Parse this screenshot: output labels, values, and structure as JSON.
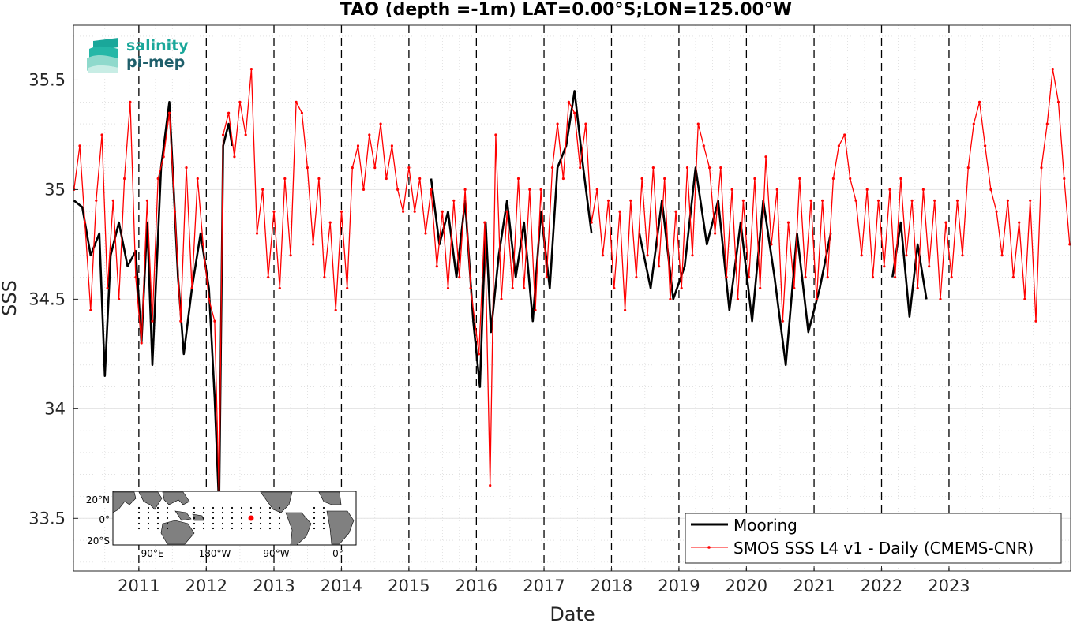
{
  "chart_data": {
    "type": "line",
    "title": "TAO (depth =-1m) LAT=0.00°S;LON=125.00°W",
    "xlabel": "Date",
    "ylabel": "SSS",
    "xlim": [
      "2010-01-12",
      "2024-10-20"
    ],
    "ylim": [
      33.26,
      35.75
    ],
    "x_tick_labels": [
      "2011",
      "2012",
      "2013",
      "2014",
      "2015",
      "2016",
      "2017",
      "2018",
      "2019",
      "2020",
      "2021",
      "2022",
      "2023"
    ],
    "x_tick_dates": [
      "2011-01-01",
      "2012-01-01",
      "2013-01-01",
      "2014-01-01",
      "2015-01-01",
      "2016-01-01",
      "2017-01-01",
      "2018-01-01",
      "2019-01-01",
      "2020-01-01",
      "2021-01-01",
      "2022-01-01",
      "2023-01-01"
    ],
    "y_ticks": [
      33.5,
      34,
      34.5,
      35,
      35.5
    ],
    "y_tick_labels": [
      "33.5",
      "34",
      "34.5",
      "35",
      "35.5"
    ],
    "grid": true,
    "legend_position": "bottom-right",
    "series": [
      {
        "name": "Mooring",
        "color": "#000000",
        "points": [
          [
            "2010-01-15",
            34.95
          ],
          [
            "2010-03-01",
            34.92
          ],
          [
            "2010-04-15",
            34.7
          ],
          [
            "2010-06-01",
            34.8
          ],
          [
            "2010-07-01",
            34.15
          ],
          [
            "2010-08-01",
            34.7
          ],
          [
            "2010-09-15",
            34.85
          ],
          [
            "2010-11-01",
            34.65
          ],
          [
            "2010-12-15",
            34.72
          ],
          [
            "2011-01-15",
            34.3
          ],
          [
            "2011-02-15",
            34.85
          ],
          [
            "2011-03-15",
            34.2
          ],
          [
            "2011-05-01",
            35.1
          ],
          [
            "2011-06-15",
            35.4
          ],
          [
            "2011-08-01",
            34.6
          ],
          [
            "2011-09-01",
            34.25
          ],
          [
            "2011-10-15",
            34.55
          ],
          [
            "2011-12-01",
            34.8
          ],
          [
            "2012-01-15",
            34.55
          ],
          [
            "2012-02-15",
            34.05
          ],
          [
            "2012-03-10",
            33.55
          ],
          [
            "2012-04-01",
            35.2
          ],
          [
            "2012-05-01",
            35.3
          ],
          [
            "2012-05-20",
            35.2
          ],
          [
            "2015-05-01",
            35.05
          ],
          [
            "2015-06-15",
            34.75
          ],
          [
            "2015-08-01",
            34.9
          ],
          [
            "2015-09-15",
            34.6
          ],
          [
            "2015-11-01",
            34.95
          ],
          [
            "2015-12-15",
            34.4
          ],
          [
            "2016-01-20",
            34.1
          ],
          [
            "2016-02-20",
            34.85
          ],
          [
            "2016-03-20",
            34.35
          ],
          [
            "2016-05-01",
            34.7
          ],
          [
            "2016-06-15",
            34.95
          ],
          [
            "2016-08-01",
            34.6
          ],
          [
            "2016-09-15",
            34.85
          ],
          [
            "2016-11-01",
            34.4
          ],
          [
            "2016-12-15",
            34.9
          ],
          [
            "2017-02-01",
            34.55
          ],
          [
            "2017-03-15",
            35.1
          ],
          [
            "2017-05-01",
            35.2
          ],
          [
            "2017-06-15",
            35.45
          ],
          [
            "2017-08-01",
            35.1
          ],
          [
            "2017-09-15",
            34.8
          ],
          [
            "2018-06-01",
            34.8
          ],
          [
            "2018-08-01",
            34.55
          ],
          [
            "2018-10-01",
            34.95
          ],
          [
            "2018-12-01",
            34.5
          ],
          [
            "2019-02-01",
            34.65
          ],
          [
            "2019-04-01",
            35.1
          ],
          [
            "2019-06-01",
            34.75
          ],
          [
            "2019-08-01",
            34.95
          ],
          [
            "2019-10-01",
            34.45
          ],
          [
            "2019-12-01",
            34.85
          ],
          [
            "2020-02-01",
            34.4
          ],
          [
            "2020-04-01",
            34.95
          ],
          [
            "2020-06-01",
            34.6
          ],
          [
            "2020-08-01",
            34.2
          ],
          [
            "2020-10-01",
            34.8
          ],
          [
            "2020-12-01",
            34.35
          ],
          [
            "2021-02-01",
            34.55
          ],
          [
            "2021-04-01",
            34.8
          ],
          [
            "2022-03-01",
            34.6
          ],
          [
            "2022-04-15",
            34.85
          ],
          [
            "2022-06-01",
            34.42
          ],
          [
            "2022-07-15",
            34.75
          ],
          [
            "2022-09-01",
            34.5
          ]
        ]
      },
      {
        "name": "SMOS SSS L4 v1 - Daily (CMEMS-CNR)",
        "color": "#ff0000",
        "points": [
          [
            "2010-01-15",
            35.0
          ],
          [
            "2010-02-15",
            35.2
          ],
          [
            "2010-03-15",
            34.85
          ],
          [
            "2010-04-15",
            34.45
          ],
          [
            "2010-05-15",
            34.95
          ],
          [
            "2010-06-15",
            35.25
          ],
          [
            "2010-07-15",
            34.55
          ],
          [
            "2010-08-15",
            34.95
          ],
          [
            "2010-09-15",
            34.5
          ],
          [
            "2010-10-15",
            35.05
          ],
          [
            "2010-11-15",
            35.4
          ],
          [
            "2010-12-15",
            34.6
          ],
          [
            "2011-01-15",
            34.3
          ],
          [
            "2011-02-15",
            34.95
          ],
          [
            "2011-03-15",
            34.4
          ],
          [
            "2011-04-15",
            35.05
          ],
          [
            "2011-05-15",
            35.15
          ],
          [
            "2011-06-15",
            35.35
          ],
          [
            "2011-07-15",
            34.9
          ],
          [
            "2011-08-15",
            34.4
          ],
          [
            "2011-09-15",
            35.1
          ],
          [
            "2011-10-15",
            34.55
          ],
          [
            "2011-11-15",
            35.05
          ],
          [
            "2011-12-15",
            34.75
          ],
          [
            "2012-01-15",
            34.5
          ],
          [
            "2012-02-15",
            34.4
          ],
          [
            "2012-03-10",
            33.6
          ],
          [
            "2012-04-01",
            35.25
          ],
          [
            "2012-05-01",
            35.35
          ],
          [
            "2012-06-01",
            35.15
          ],
          [
            "2012-07-01",
            35.4
          ],
          [
            "2012-08-01",
            35.25
          ],
          [
            "2012-09-01",
            35.55
          ],
          [
            "2012-10-01",
            34.8
          ],
          [
            "2012-11-01",
            35.0
          ],
          [
            "2012-12-01",
            34.6
          ],
          [
            "2013-01-01",
            34.9
          ],
          [
            "2013-02-01",
            34.55
          ],
          [
            "2013-03-01",
            35.05
          ],
          [
            "2013-04-01",
            34.7
          ],
          [
            "2013-05-01",
            35.4
          ],
          [
            "2013-06-01",
            35.35
          ],
          [
            "2013-07-01",
            35.1
          ],
          [
            "2013-08-01",
            34.75
          ],
          [
            "2013-09-01",
            35.05
          ],
          [
            "2013-10-01",
            34.6
          ],
          [
            "2013-11-01",
            34.85
          ],
          [
            "2013-12-01",
            34.45
          ],
          [
            "2014-01-01",
            34.9
          ],
          [
            "2014-02-01",
            34.55
          ],
          [
            "2014-03-01",
            35.1
          ],
          [
            "2014-04-01",
            35.2
          ],
          [
            "2014-05-01",
            35.0
          ],
          [
            "2014-06-01",
            35.25
          ],
          [
            "2014-07-01",
            35.1
          ],
          [
            "2014-08-01",
            35.3
          ],
          [
            "2014-09-01",
            35.05
          ],
          [
            "2014-10-01",
            35.2
          ],
          [
            "2014-11-01",
            35.0
          ],
          [
            "2014-12-01",
            34.9
          ],
          [
            "2015-01-01",
            35.1
          ],
          [
            "2015-02-01",
            34.9
          ],
          [
            "2015-03-01",
            35.05
          ],
          [
            "2015-04-01",
            34.8
          ],
          [
            "2015-05-01",
            35.0
          ],
          [
            "2015-06-01",
            34.65
          ],
          [
            "2015-07-01",
            34.9
          ],
          [
            "2015-08-01",
            34.55
          ],
          [
            "2015-09-01",
            34.95
          ],
          [
            "2015-10-01",
            34.6
          ],
          [
            "2015-11-01",
            35.0
          ],
          [
            "2015-12-01",
            34.55
          ],
          [
            "2016-01-15",
            34.25
          ],
          [
            "2016-02-15",
            34.85
          ],
          [
            "2016-03-15",
            33.65
          ],
          [
            "2016-04-15",
            35.25
          ],
          [
            "2016-05-15",
            34.5
          ],
          [
            "2016-06-15",
            34.9
          ],
          [
            "2016-07-15",
            34.55
          ],
          [
            "2016-08-15",
            35.05
          ],
          [
            "2016-09-15",
            34.55
          ],
          [
            "2016-10-15",
            35.0
          ],
          [
            "2016-11-15",
            34.45
          ],
          [
            "2016-12-15",
            35.0
          ],
          [
            "2017-01-15",
            34.6
          ],
          [
            "2017-02-15",
            35.1
          ],
          [
            "2017-03-15",
            35.3
          ],
          [
            "2017-04-15",
            35.05
          ],
          [
            "2017-05-15",
            35.4
          ],
          [
            "2017-06-15",
            35.35
          ],
          [
            "2017-07-15",
            35.1
          ],
          [
            "2017-08-15",
            35.3
          ],
          [
            "2017-09-15",
            34.85
          ],
          [
            "2017-10-15",
            35.0
          ],
          [
            "2017-11-15",
            34.7
          ],
          [
            "2017-12-15",
            34.95
          ],
          [
            "2018-01-15",
            34.55
          ],
          [
            "2018-02-15",
            34.9
          ],
          [
            "2018-03-15",
            34.45
          ],
          [
            "2018-04-15",
            34.95
          ],
          [
            "2018-05-15",
            34.6
          ],
          [
            "2018-06-15",
            35.05
          ],
          [
            "2018-07-15",
            34.7
          ],
          [
            "2018-08-15",
            35.1
          ],
          [
            "2018-09-15",
            34.65
          ],
          [
            "2018-10-15",
            35.05
          ],
          [
            "2018-11-15",
            34.5
          ],
          [
            "2018-12-15",
            34.9
          ],
          [
            "2019-01-15",
            34.55
          ],
          [
            "2019-02-15",
            35.1
          ],
          [
            "2019-03-15",
            34.7
          ],
          [
            "2019-04-15",
            35.3
          ],
          [
            "2019-05-15",
            35.2
          ],
          [
            "2019-06-15",
            35.1
          ],
          [
            "2019-07-15",
            34.8
          ],
          [
            "2019-08-15",
            35.1
          ],
          [
            "2019-09-15",
            34.6
          ],
          [
            "2019-10-15",
            35.0
          ],
          [
            "2019-11-15",
            34.5
          ],
          [
            "2019-12-15",
            34.95
          ],
          [
            "2020-01-15",
            34.6
          ],
          [
            "2020-02-15",
            35.05
          ],
          [
            "2020-03-15",
            34.55
          ],
          [
            "2020-04-15",
            35.15
          ],
          [
            "2020-05-15",
            34.75
          ],
          [
            "2020-06-15",
            35.0
          ],
          [
            "2020-07-15",
            34.4
          ],
          [
            "2020-08-15",
            34.85
          ],
          [
            "2020-09-15",
            34.55
          ],
          [
            "2020-10-15",
            35.05
          ],
          [
            "2020-11-15",
            34.6
          ],
          [
            "2020-12-15",
            34.95
          ],
          [
            "2021-01-15",
            34.5
          ],
          [
            "2021-02-15",
            34.95
          ],
          [
            "2021-03-15",
            34.6
          ],
          [
            "2021-04-15",
            35.05
          ],
          [
            "2021-05-15",
            35.2
          ],
          [
            "2021-06-15",
            35.25
          ],
          [
            "2021-07-15",
            35.05
          ],
          [
            "2021-08-15",
            34.95
          ],
          [
            "2021-09-15",
            34.7
          ],
          [
            "2021-10-15",
            35.0
          ],
          [
            "2021-11-15",
            34.6
          ],
          [
            "2021-12-15",
            34.95
          ],
          [
            "2022-01-15",
            34.65
          ],
          [
            "2022-02-15",
            35.0
          ],
          [
            "2022-03-15",
            34.6
          ],
          [
            "2022-04-15",
            35.05
          ],
          [
            "2022-05-15",
            34.7
          ],
          [
            "2022-06-15",
            34.95
          ],
          [
            "2022-07-15",
            34.55
          ],
          [
            "2022-08-15",
            35.0
          ],
          [
            "2022-09-15",
            34.65
          ],
          [
            "2022-10-15",
            34.95
          ],
          [
            "2022-11-15",
            34.5
          ],
          [
            "2022-12-15",
            34.85
          ],
          [
            "2023-01-15",
            34.6
          ],
          [
            "2023-02-15",
            34.95
          ],
          [
            "2023-03-15",
            34.7
          ],
          [
            "2023-04-15",
            35.1
          ],
          [
            "2023-05-15",
            35.3
          ],
          [
            "2023-06-15",
            35.4
          ],
          [
            "2023-07-15",
            35.2
          ],
          [
            "2023-08-15",
            35.0
          ],
          [
            "2023-09-15",
            34.9
          ],
          [
            "2023-10-15",
            34.7
          ],
          [
            "2023-11-15",
            34.95
          ],
          [
            "2023-12-15",
            34.6
          ],
          [
            "2024-01-15",
            34.85
          ],
          [
            "2024-02-15",
            34.5
          ],
          [
            "2024-03-15",
            34.95
          ],
          [
            "2024-04-15",
            34.4
          ],
          [
            "2024-05-15",
            35.1
          ],
          [
            "2024-06-15",
            35.3
          ],
          [
            "2024-07-15",
            35.55
          ],
          [
            "2024-08-15",
            35.4
          ],
          [
            "2024-09-15",
            35.05
          ],
          [
            "2024-10-15",
            34.75
          ]
        ]
      }
    ]
  },
  "logo": {
    "line1": "salinity",
    "line2": "pi-mep"
  },
  "inset_map": {
    "lat_labels": [
      "20°N",
      "0°",
      "20°S"
    ],
    "lon_labels": [
      "90°E",
      "180°W",
      "90°W",
      "0°"
    ],
    "highlight_color": "#ff0000"
  }
}
